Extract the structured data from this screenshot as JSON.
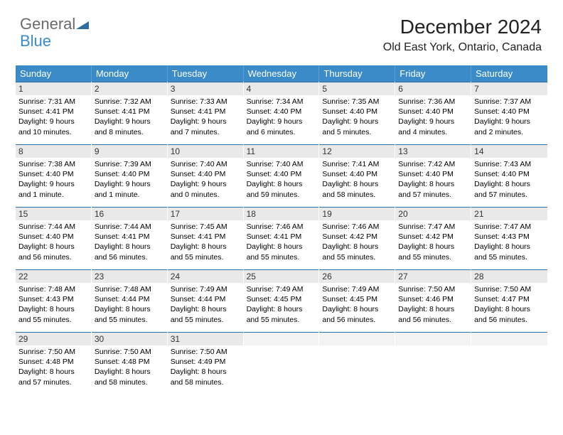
{
  "logo": {
    "text1": "General",
    "text2": "Blue"
  },
  "header": {
    "month": "December 2024",
    "location": "Old East York, Ontario, Canada"
  },
  "colors": {
    "header_bg": "#3b8bc9",
    "header_text": "#ffffff",
    "daynum_bg": "#e9e9e9",
    "daynum_border": "#2d6fa3",
    "logo_gray": "#6a6a6a",
    "logo_blue": "#3b8bc9"
  },
  "weekdays": [
    "Sunday",
    "Monday",
    "Tuesday",
    "Wednesday",
    "Thursday",
    "Friday",
    "Saturday"
  ],
  "days": [
    {
      "n": "1",
      "sr": "7:31 AM",
      "ss": "4:41 PM",
      "dl": "9 hours and 10 minutes."
    },
    {
      "n": "2",
      "sr": "7:32 AM",
      "ss": "4:41 PM",
      "dl": "9 hours and 8 minutes."
    },
    {
      "n": "3",
      "sr": "7:33 AM",
      "ss": "4:41 PM",
      "dl": "9 hours and 7 minutes."
    },
    {
      "n": "4",
      "sr": "7:34 AM",
      "ss": "4:40 PM",
      "dl": "9 hours and 6 minutes."
    },
    {
      "n": "5",
      "sr": "7:35 AM",
      "ss": "4:40 PM",
      "dl": "9 hours and 5 minutes."
    },
    {
      "n": "6",
      "sr": "7:36 AM",
      "ss": "4:40 PM",
      "dl": "9 hours and 4 minutes."
    },
    {
      "n": "7",
      "sr": "7:37 AM",
      "ss": "4:40 PM",
      "dl": "9 hours and 2 minutes."
    },
    {
      "n": "8",
      "sr": "7:38 AM",
      "ss": "4:40 PM",
      "dl": "9 hours and 1 minute."
    },
    {
      "n": "9",
      "sr": "7:39 AM",
      "ss": "4:40 PM",
      "dl": "9 hours and 1 minute."
    },
    {
      "n": "10",
      "sr": "7:40 AM",
      "ss": "4:40 PM",
      "dl": "9 hours and 0 minutes."
    },
    {
      "n": "11",
      "sr": "7:40 AM",
      "ss": "4:40 PM",
      "dl": "8 hours and 59 minutes."
    },
    {
      "n": "12",
      "sr": "7:41 AM",
      "ss": "4:40 PM",
      "dl": "8 hours and 58 minutes."
    },
    {
      "n": "13",
      "sr": "7:42 AM",
      "ss": "4:40 PM",
      "dl": "8 hours and 57 minutes."
    },
    {
      "n": "14",
      "sr": "7:43 AM",
      "ss": "4:40 PM",
      "dl": "8 hours and 57 minutes."
    },
    {
      "n": "15",
      "sr": "7:44 AM",
      "ss": "4:40 PM",
      "dl": "8 hours and 56 minutes."
    },
    {
      "n": "16",
      "sr": "7:44 AM",
      "ss": "4:41 PM",
      "dl": "8 hours and 56 minutes."
    },
    {
      "n": "17",
      "sr": "7:45 AM",
      "ss": "4:41 PM",
      "dl": "8 hours and 55 minutes."
    },
    {
      "n": "18",
      "sr": "7:46 AM",
      "ss": "4:41 PM",
      "dl": "8 hours and 55 minutes."
    },
    {
      "n": "19",
      "sr": "7:46 AM",
      "ss": "4:42 PM",
      "dl": "8 hours and 55 minutes."
    },
    {
      "n": "20",
      "sr": "7:47 AM",
      "ss": "4:42 PM",
      "dl": "8 hours and 55 minutes."
    },
    {
      "n": "21",
      "sr": "7:47 AM",
      "ss": "4:43 PM",
      "dl": "8 hours and 55 minutes."
    },
    {
      "n": "22",
      "sr": "7:48 AM",
      "ss": "4:43 PM",
      "dl": "8 hours and 55 minutes."
    },
    {
      "n": "23",
      "sr": "7:48 AM",
      "ss": "4:44 PM",
      "dl": "8 hours and 55 minutes."
    },
    {
      "n": "24",
      "sr": "7:49 AM",
      "ss": "4:44 PM",
      "dl": "8 hours and 55 minutes."
    },
    {
      "n": "25",
      "sr": "7:49 AM",
      "ss": "4:45 PM",
      "dl": "8 hours and 55 minutes."
    },
    {
      "n": "26",
      "sr": "7:49 AM",
      "ss": "4:45 PM",
      "dl": "8 hours and 56 minutes."
    },
    {
      "n": "27",
      "sr": "7:50 AM",
      "ss": "4:46 PM",
      "dl": "8 hours and 56 minutes."
    },
    {
      "n": "28",
      "sr": "7:50 AM",
      "ss": "4:47 PM",
      "dl": "8 hours and 56 minutes."
    },
    {
      "n": "29",
      "sr": "7:50 AM",
      "ss": "4:48 PM",
      "dl": "8 hours and 57 minutes."
    },
    {
      "n": "30",
      "sr": "7:50 AM",
      "ss": "4:48 PM",
      "dl": "8 hours and 58 minutes."
    },
    {
      "n": "31",
      "sr": "7:50 AM",
      "ss": "4:49 PM",
      "dl": "8 hours and 58 minutes."
    }
  ],
  "labels": {
    "sunrise": "Sunrise:",
    "sunset": "Sunset:",
    "daylight": "Daylight:"
  }
}
